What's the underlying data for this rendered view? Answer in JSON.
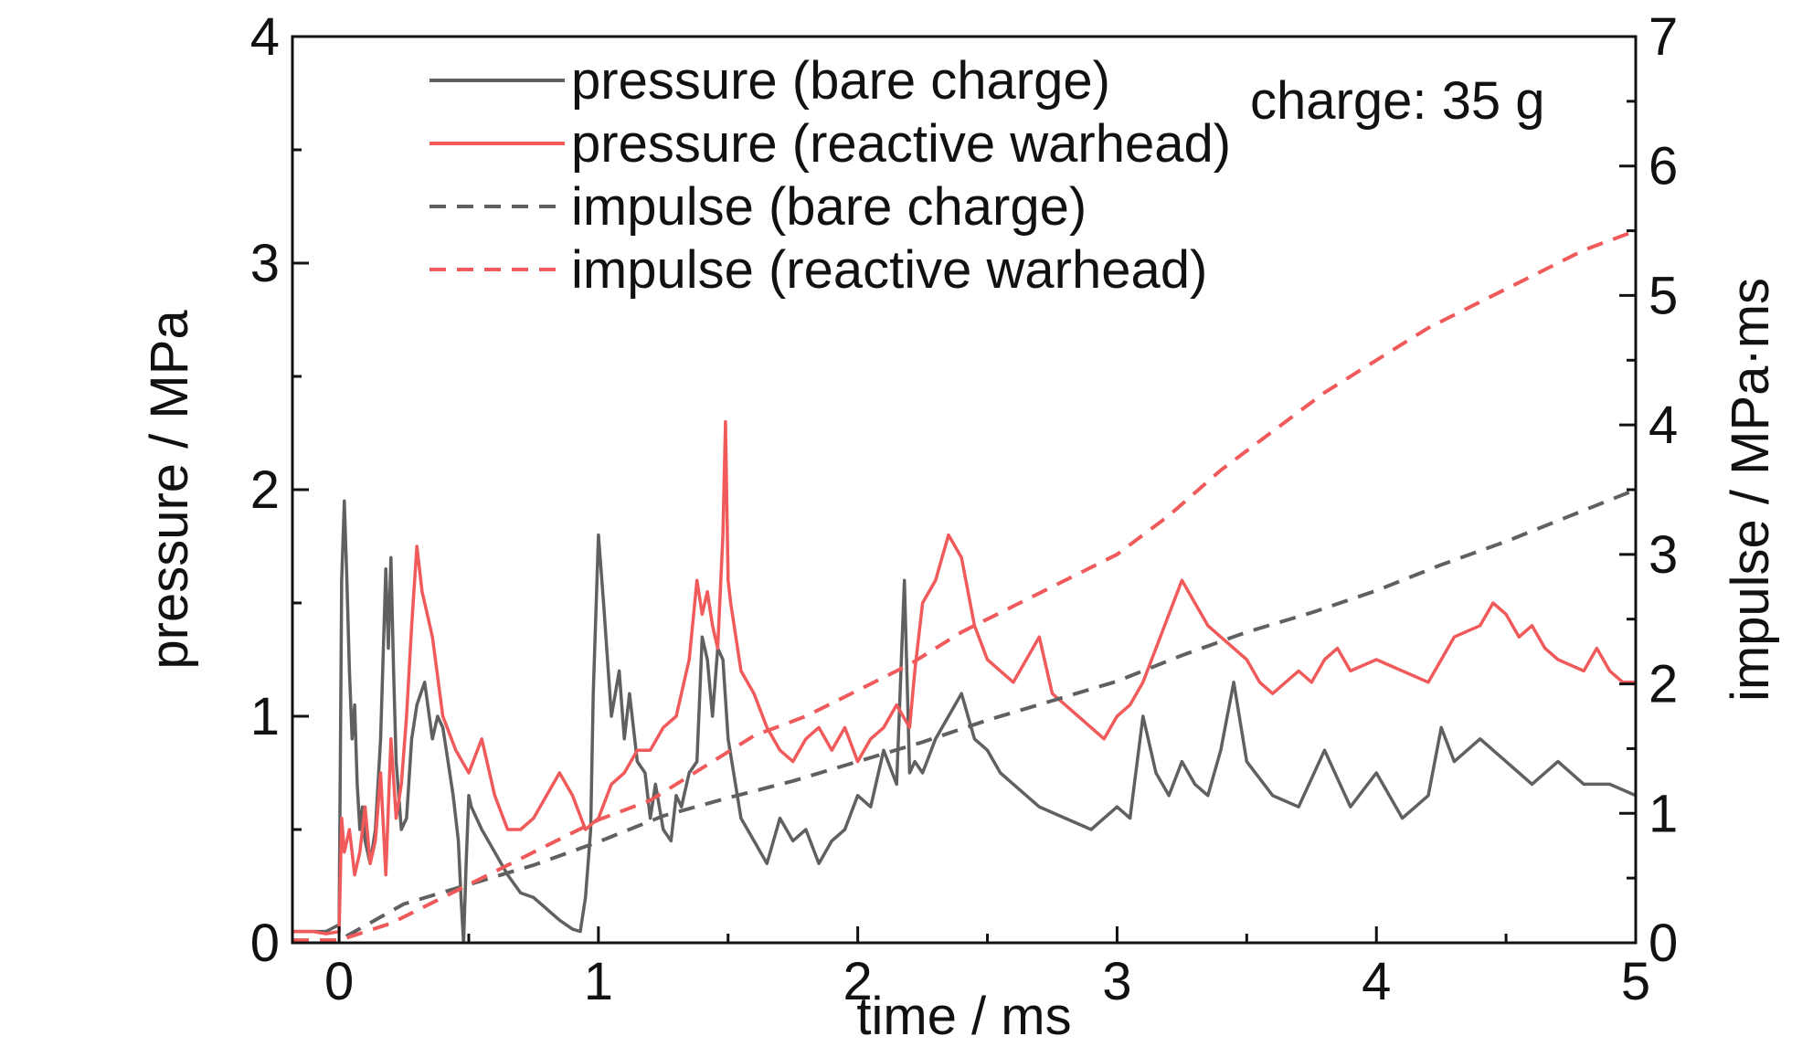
{
  "chart_data": {
    "type": "line",
    "xlabel": "time / ms",
    "ylabel": "pressure / MPa",
    "y2label": "impulse / MPa·ms",
    "xlim": [
      -0.18,
      5
    ],
    "ylim": [
      0,
      4
    ],
    "y2lim": [
      0,
      7
    ],
    "xticks": [
      0,
      1,
      2,
      3,
      4,
      5
    ],
    "yticks": [
      0,
      1,
      2,
      3,
      4
    ],
    "y2ticks": [
      0,
      1,
      2,
      3,
      4,
      5,
      6,
      7
    ],
    "grid": false,
    "legend_position": "top-left",
    "annotation": "charge: 35 g",
    "colors": {
      "bare": "#606060",
      "reactive": "#f05a5a",
      "axis": "#111111"
    },
    "series": [
      {
        "name": "pressure (bare charge)",
        "axis": "left",
        "style": "solid",
        "color": "#606060",
        "x": [
          -0.18,
          -0.1,
          -0.05,
          0.0,
          0.01,
          0.02,
          0.03,
          0.04,
          0.05,
          0.06,
          0.07,
          0.08,
          0.09,
          0.1,
          0.12,
          0.14,
          0.16,
          0.18,
          0.19,
          0.2,
          0.21,
          0.22,
          0.24,
          0.26,
          0.28,
          0.3,
          0.33,
          0.36,
          0.38,
          0.4,
          0.42,
          0.44,
          0.46,
          0.47,
          0.48,
          0.49,
          0.5,
          0.51,
          0.53,
          0.55,
          0.6,
          0.65,
          0.7,
          0.75,
          0.8,
          0.85,
          0.9,
          0.93,
          0.95,
          0.97,
          0.98,
          1.0,
          1.02,
          1.05,
          1.08,
          1.1,
          1.12,
          1.15,
          1.18,
          1.2,
          1.22,
          1.25,
          1.28,
          1.3,
          1.32,
          1.35,
          1.38,
          1.4,
          1.42,
          1.44,
          1.46,
          1.48,
          1.5,
          1.55,
          1.6,
          1.65,
          1.7,
          1.75,
          1.8,
          1.85,
          1.9,
          1.95,
          2.0,
          2.05,
          2.1,
          2.15,
          2.18,
          2.2,
          2.22,
          2.25,
          2.3,
          2.35,
          2.4,
          2.45,
          2.5,
          2.55,
          2.6,
          2.7,
          2.8,
          2.9,
          2.95,
          3.0,
          3.05,
          3.1,
          3.15,
          3.2,
          3.25,
          3.3,
          3.35,
          3.4,
          3.45,
          3.5,
          3.6,
          3.7,
          3.8,
          3.9,
          4.0,
          4.1,
          4.2,
          4.25,
          4.3,
          4.4,
          4.5,
          4.6,
          4.7,
          4.8,
          4.9,
          5.0
        ],
        "y": [
          0.05,
          0.05,
          0.05,
          0.08,
          1.6,
          1.95,
          1.6,
          1.2,
          0.9,
          1.05,
          0.7,
          0.5,
          0.6,
          0.45,
          0.35,
          0.5,
          0.9,
          1.65,
          1.3,
          1.7,
          1.2,
          0.8,
          0.5,
          0.55,
          0.9,
          1.05,
          1.15,
          0.9,
          1.0,
          0.95,
          0.8,
          0.65,
          0.45,
          0.2,
          0.0,
          0.35,
          0.65,
          0.6,
          0.55,
          0.5,
          0.4,
          0.3,
          0.22,
          0.2,
          0.15,
          0.1,
          0.06,
          0.05,
          0.2,
          0.5,
          1.1,
          1.8,
          1.5,
          1.0,
          1.2,
          0.9,
          1.1,
          0.8,
          0.75,
          0.55,
          0.7,
          0.5,
          0.45,
          0.65,
          0.6,
          0.75,
          0.8,
          1.35,
          1.25,
          1.0,
          1.3,
          1.25,
          0.9,
          0.55,
          0.45,
          0.35,
          0.55,
          0.45,
          0.5,
          0.35,
          0.45,
          0.5,
          0.65,
          0.6,
          0.85,
          0.7,
          1.6,
          0.75,
          0.8,
          0.75,
          0.9,
          1.0,
          1.1,
          0.9,
          0.85,
          0.75,
          0.7,
          0.6,
          0.55,
          0.5,
          0.55,
          0.6,
          0.55,
          1.0,
          0.75,
          0.65,
          0.8,
          0.7,
          0.65,
          0.85,
          1.15,
          0.8,
          0.65,
          0.6,
          0.85,
          0.6,
          0.75,
          0.55,
          0.65,
          0.95,
          0.8,
          0.9,
          0.8,
          0.7,
          0.8,
          0.7,
          0.7,
          0.65
        ]
      },
      {
        "name": "pressure (reactive warhead)",
        "axis": "left",
        "style": "solid",
        "color": "#f05a5a",
        "x": [
          -0.18,
          -0.1,
          -0.05,
          0.0,
          0.01,
          0.02,
          0.04,
          0.06,
          0.08,
          0.1,
          0.12,
          0.14,
          0.16,
          0.18,
          0.2,
          0.22,
          0.24,
          0.26,
          0.28,
          0.3,
          0.32,
          0.34,
          0.36,
          0.4,
          0.45,
          0.5,
          0.55,
          0.6,
          0.65,
          0.7,
          0.75,
          0.8,
          0.85,
          0.9,
          0.95,
          1.0,
          1.05,
          1.1,
          1.15,
          1.2,
          1.25,
          1.3,
          1.35,
          1.38,
          1.4,
          1.42,
          1.44,
          1.46,
          1.48,
          1.49,
          1.5,
          1.51,
          1.55,
          1.6,
          1.65,
          1.7,
          1.75,
          1.8,
          1.85,
          1.9,
          1.95,
          2.0,
          2.05,
          2.1,
          2.15,
          2.2,
          2.22,
          2.25,
          2.3,
          2.35,
          2.4,
          2.45,
          2.5,
          2.55,
          2.6,
          2.65,
          2.7,
          2.75,
          2.8,
          2.85,
          2.9,
          2.95,
          3.0,
          3.05,
          3.1,
          3.15,
          3.2,
          3.25,
          3.3,
          3.35,
          3.4,
          3.45,
          3.5,
          3.55,
          3.6,
          3.65,
          3.7,
          3.75,
          3.8,
          3.85,
          3.9,
          4.0,
          4.1,
          4.2,
          4.3,
          4.4,
          4.45,
          4.5,
          4.55,
          4.6,
          4.65,
          4.7,
          4.8,
          4.85,
          4.9,
          4.95,
          5.0
        ],
        "y": [
          0.05,
          0.05,
          0.04,
          0.05,
          0.55,
          0.4,
          0.5,
          0.3,
          0.4,
          0.6,
          0.35,
          0.45,
          0.75,
          0.3,
          0.9,
          0.55,
          0.7,
          1.0,
          1.4,
          1.75,
          1.55,
          1.45,
          1.35,
          1.0,
          0.85,
          0.75,
          0.9,
          0.65,
          0.5,
          0.5,
          0.55,
          0.65,
          0.75,
          0.65,
          0.5,
          0.55,
          0.7,
          0.75,
          0.85,
          0.85,
          0.95,
          1.0,
          1.25,
          1.6,
          1.45,
          1.55,
          1.4,
          1.3,
          1.8,
          2.3,
          1.6,
          1.5,
          1.2,
          1.1,
          0.95,
          0.85,
          0.8,
          0.9,
          0.95,
          0.85,
          0.95,
          0.8,
          0.9,
          0.95,
          1.05,
          0.95,
          1.2,
          1.5,
          1.6,
          1.8,
          1.7,
          1.4,
          1.25,
          1.2,
          1.15,
          1.25,
          1.35,
          1.1,
          1.05,
          1.0,
          0.95,
          0.9,
          1.0,
          1.05,
          1.15,
          1.3,
          1.45,
          1.6,
          1.5,
          1.4,
          1.35,
          1.3,
          1.25,
          1.15,
          1.1,
          1.15,
          1.2,
          1.15,
          1.25,
          1.3,
          1.2,
          1.25,
          1.2,
          1.15,
          1.35,
          1.4,
          1.5,
          1.45,
          1.35,
          1.4,
          1.3,
          1.25,
          1.2,
          1.3,
          1.2,
          1.15,
          1.15
        ]
      },
      {
        "name": "impulse (bare charge)",
        "axis": "right",
        "style": "dashed",
        "color": "#606060",
        "x": [
          -0.18,
          0.0,
          0.25,
          0.5,
          0.75,
          1.0,
          1.25,
          1.5,
          1.75,
          2.0,
          2.25,
          2.5,
          2.75,
          3.0,
          3.25,
          3.5,
          3.75,
          4.0,
          4.25,
          4.5,
          4.75,
          5.0
        ],
        "y": [
          0.02,
          0.02,
          0.3,
          0.45,
          0.6,
          0.78,
          0.98,
          1.12,
          1.25,
          1.4,
          1.55,
          1.72,
          1.87,
          2.02,
          2.22,
          2.4,
          2.55,
          2.72,
          2.92,
          3.1,
          3.3,
          3.5
        ]
      },
      {
        "name": "impulse (reactive warhead)",
        "axis": "right",
        "style": "dashed",
        "color": "#f05a5a",
        "x": [
          -0.18,
          0.0,
          0.2,
          0.4,
          0.6,
          0.8,
          1.0,
          1.2,
          1.4,
          1.6,
          1.8,
          2.0,
          2.2,
          2.4,
          2.6,
          2.8,
          3.0,
          3.2,
          3.4,
          3.6,
          3.8,
          4.0,
          4.2,
          4.4,
          4.6,
          4.8,
          5.0
        ],
        "y": [
          0.02,
          0.02,
          0.15,
          0.35,
          0.55,
          0.75,
          0.95,
          1.1,
          1.35,
          1.6,
          1.75,
          1.95,
          2.15,
          2.4,
          2.6,
          2.8,
          3.0,
          3.3,
          3.65,
          3.95,
          4.25,
          4.5,
          4.75,
          4.95,
          5.15,
          5.35,
          5.5
        ]
      }
    ]
  }
}
